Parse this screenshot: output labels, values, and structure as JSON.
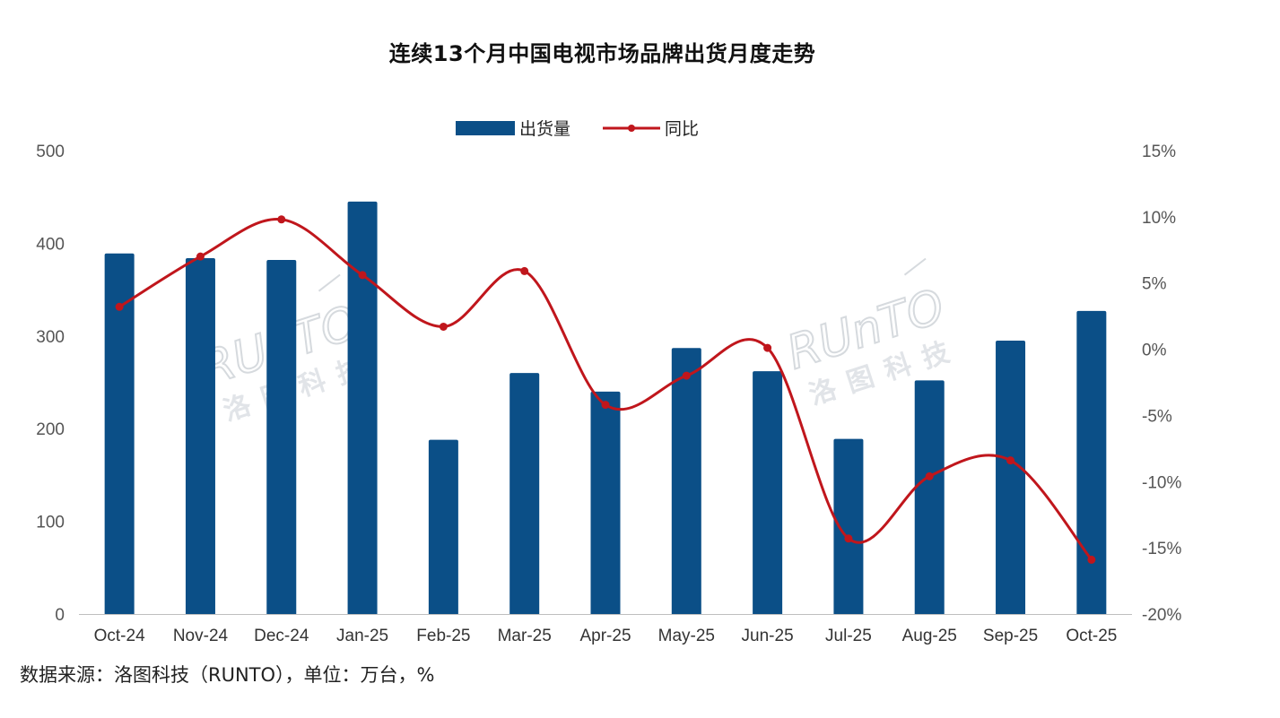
{
  "title": "连续13个月中国电视市场品牌出货月度走势",
  "source": "数据来源：洛图科技（RUNTO），单位：万台，%",
  "watermark": {
    "latin": "RUnTO",
    "cjk": "洛图科技"
  },
  "colors": {
    "bar": "#0b4f87",
    "line": "#c0161c",
    "axis": "#bfbfbf"
  },
  "chart_data": {
    "type": "bar",
    "title": "连续13个月中国电视市场品牌出货月度走势",
    "categories": [
      "Oct-24",
      "Nov-24",
      "Dec-24",
      "Jan-25",
      "Feb-25",
      "Mar-25",
      "Apr-25",
      "May-25",
      "Jun-25",
      "Jul-25",
      "Aug-25",
      "Sep-25",
      "Oct-25"
    ],
    "series": [
      {
        "name": "出货量",
        "type": "bar",
        "axis": "left",
        "values": [
          389,
          384,
          382,
          445,
          188,
          260,
          240,
          287,
          262,
          189,
          252,
          295,
          327
        ]
      },
      {
        "name": "同比",
        "type": "line",
        "axis": "right",
        "values": [
          3.2,
          7.0,
          9.8,
          5.6,
          1.7,
          5.9,
          -4.2,
          -2.0,
          0.1,
          -14.3,
          -9.6,
          -8.4,
          -15.9
        ]
      }
    ],
    "y_left": {
      "lim": [
        0,
        500
      ],
      "ticks": [
        0,
        100,
        200,
        300,
        400,
        500
      ],
      "tick_labels": [
        "0",
        "100",
        "200",
        "300",
        "400",
        "500"
      ]
    },
    "y_right": {
      "lim": [
        -20,
        15
      ],
      "ticks": [
        -20,
        -15,
        -10,
        -5,
        0,
        5,
        10,
        15
      ],
      "tick_labels": [
        "-20%",
        "-15%",
        "-10%",
        "-5%",
        "0%",
        "5%",
        "10%",
        "15%"
      ]
    },
    "legend": {
      "position": "top-center",
      "entries": [
        "出货量",
        "同比"
      ]
    },
    "grid": false
  }
}
